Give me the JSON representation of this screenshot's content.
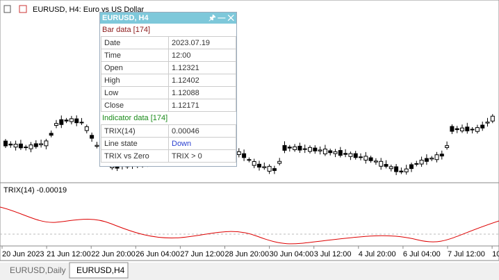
{
  "chart_window": {
    "title": "EURUSD, H4:  Euro vs US Dollar",
    "indicator_label": "TRIX(14) -0.00019",
    "time_labels": [
      "20 Jun 2023",
      "21 Jun 12:00",
      "22 Jun 20:00",
      "26 Jun 04:00",
      "27 Jun 12:00",
      "28 Jun 20:00",
      "30 Jun 04:00",
      "3 Jul 12:00",
      "4 Jul 20:00",
      "6 Jul 04:00",
      "7 Jul 12:00",
      "10"
    ]
  },
  "data_window": {
    "title": "EURUSD, H4",
    "bar_section": "Bar data [174]",
    "bar_rows": [
      [
        "Date",
        "2023.07.19"
      ],
      [
        "Time",
        "12:00"
      ],
      [
        "Open",
        "1.12321"
      ],
      [
        "High",
        "1.12402"
      ],
      [
        "Low",
        "1.12088"
      ],
      [
        "Close",
        "1.12171"
      ]
    ],
    "indicator_section": "Indicator data [174]",
    "indicator_rows": [
      [
        "TRIX(14)",
        "0.00046"
      ],
      [
        "Line state",
        "Down"
      ],
      [
        "TRIX vs Zero",
        "TRIX > 0"
      ]
    ]
  },
  "tabs": [
    "EURUSD,Daily",
    "EURUSD,H4"
  ]
}
